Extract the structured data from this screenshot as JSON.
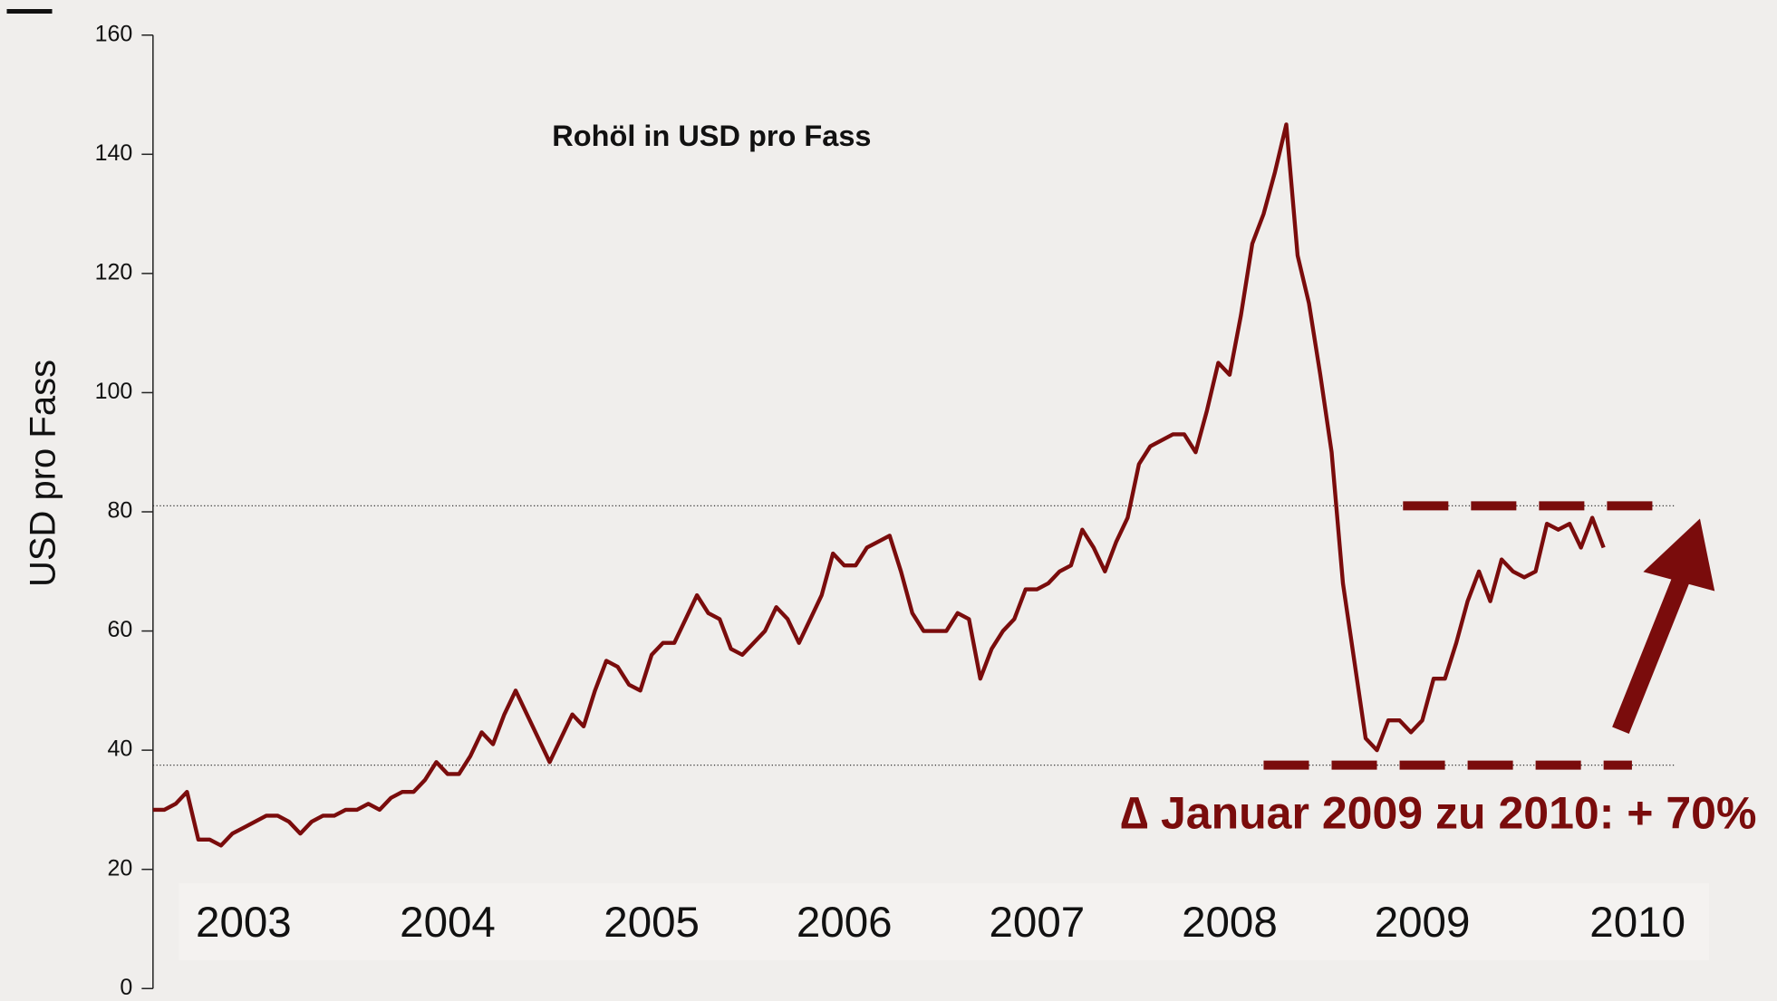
{
  "chart_data": {
    "type": "line",
    "title": "Rohöl in USD pro Fass",
    "ylabel": "USD pro Fass",
    "annotation": "∆ Januar 2009 zu 2010:  + 70%",
    "color": "#7a0c0c",
    "categories": [
      null,
      null,
      null,
      null,
      null,
      null,
      null,
      null,
      "2003",
      null,
      null,
      null,
      null,
      null,
      null,
      null,
      null,
      null,
      null,
      null,
      null,
      null,
      null,
      null,
      null,
      null,
      "2004",
      null,
      null,
      null,
      null,
      null,
      null,
      null,
      null,
      null,
      null,
      null,
      null,
      null,
      null,
      null,
      null,
      null,
      "2005",
      null,
      null,
      null,
      null,
      null,
      null,
      null,
      null,
      null,
      null,
      null,
      null,
      null,
      null,
      null,
      null,
      "2006",
      null,
      null,
      null,
      null,
      null,
      null,
      null,
      null,
      null,
      null,
      null,
      null,
      null,
      null,
      null,
      null,
      "2007",
      null,
      null,
      null,
      null,
      null,
      null,
      null,
      null,
      null,
      null,
      null,
      null,
      null,
      null,
      null,
      null,
      "2008",
      null,
      null,
      null,
      null,
      null,
      null,
      null,
      null,
      null,
      null,
      null,
      null,
      null,
      null,
      null,
      null,
      "2009",
      null,
      null,
      null,
      null,
      null,
      null,
      null,
      null,
      null,
      null,
      null,
      null,
      null,
      null,
      null,
      null,
      null,
      null,
      "2010",
      null
    ],
    "values": [
      30,
      30,
      31,
      33,
      25,
      25,
      24,
      26,
      27,
      28,
      29,
      29,
      28,
      26,
      28,
      29,
      29,
      30,
      30,
      31,
      30,
      32,
      33,
      33,
      35,
      38,
      36,
      36,
      39,
      43,
      41,
      46,
      50,
      46,
      42,
      38,
      42,
      46,
      44,
      50,
      55,
      54,
      51,
      50,
      56,
      58,
      58,
      62,
      66,
      63,
      62,
      57,
      56,
      58,
      60,
      64,
      62,
      58,
      62,
      66,
      73,
      71,
      71,
      74,
      75,
      76,
      70,
      63,
      60,
      60,
      60,
      63,
      62,
      52,
      57,
      60,
      62,
      67,
      67,
      68,
      70,
      71,
      77,
      74,
      70,
      75,
      79,
      88,
      91,
      92,
      93,
      93,
      90,
      97,
      105,
      103,
      113,
      125,
      130,
      137,
      145,
      123,
      115,
      103,
      90,
      68,
      55,
      42,
      40,
      45,
      45,
      43,
      45,
      52,
      52,
      58,
      65,
      70,
      65,
      72,
      70,
      69,
      70,
      78,
      77,
      78,
      74,
      79,
      74,
      null,
      null,
      null,
      null
    ],
    "ylim": [
      0,
      160
    ],
    "yticks": [
      0,
      20,
      40,
      60,
      80,
      100,
      120,
      140,
      160
    ],
    "reference_lines": [
      81,
      37.5
    ]
  }
}
